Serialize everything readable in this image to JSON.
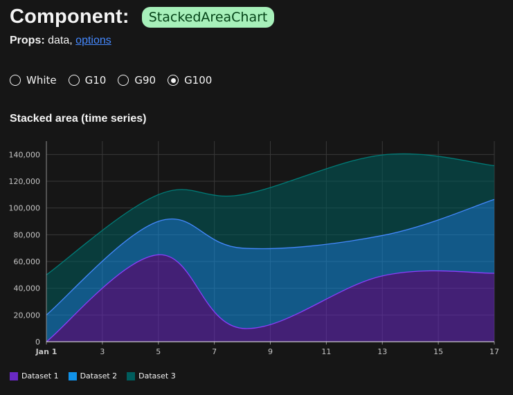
{
  "header": {
    "title": "Component:",
    "component_tag": "StackedAreaChart",
    "props_label": "Props:",
    "props_plain": "data,",
    "props_link": "options"
  },
  "themes": {
    "options": [
      "White",
      "G10",
      "G90",
      "G100"
    ],
    "selected": "G100"
  },
  "chart_data": {
    "type": "area",
    "stacked": true,
    "title": "Stacked area (time series)",
    "x_ticks": [
      "Jan 1",
      "3",
      "5",
      "7",
      "9",
      "11",
      "13",
      "15",
      "17"
    ],
    "x_domain": [
      1,
      17
    ],
    "ylim": [
      0,
      150000
    ],
    "y_ticks": [
      "0",
      "20,000",
      "40,000",
      "60,000",
      "80,000",
      "100,000",
      "120,000",
      "140,000"
    ],
    "y_tick_values": [
      0,
      20000,
      40000,
      60000,
      80000,
      100000,
      120000,
      140000
    ],
    "grid": true,
    "legend_position": "bottom-left",
    "series": [
      {
        "name": "Dataset 1",
        "color": "#6929c4",
        "points": [
          {
            "x": 1,
            "y": 0
          },
          {
            "x": 5,
            "y": 65000
          },
          {
            "x": 8,
            "y": 10000
          },
          {
            "x": 13,
            "y": 49213
          },
          {
            "x": 17,
            "y": 51213
          }
        ]
      },
      {
        "name": "Dataset 2",
        "color": "#1192e8",
        "points": [
          {
            "x": 1,
            "y": 20000
          },
          {
            "x": 5,
            "y": 25000
          },
          {
            "x": 8,
            "y": 60000
          },
          {
            "x": 13,
            "y": 30213
          },
          {
            "x": 17,
            "y": 55213
          }
        ]
      },
      {
        "name": "Dataset 3",
        "color": "#005d5d",
        "points": [
          {
            "x": 1,
            "y": 30000
          },
          {
            "x": 5,
            "y": 20000
          },
          {
            "x": 8,
            "y": 40000
          },
          {
            "x": 13,
            "y": 60213
          },
          {
            "x": 17,
            "y": 25213
          }
        ]
      }
    ]
  }
}
